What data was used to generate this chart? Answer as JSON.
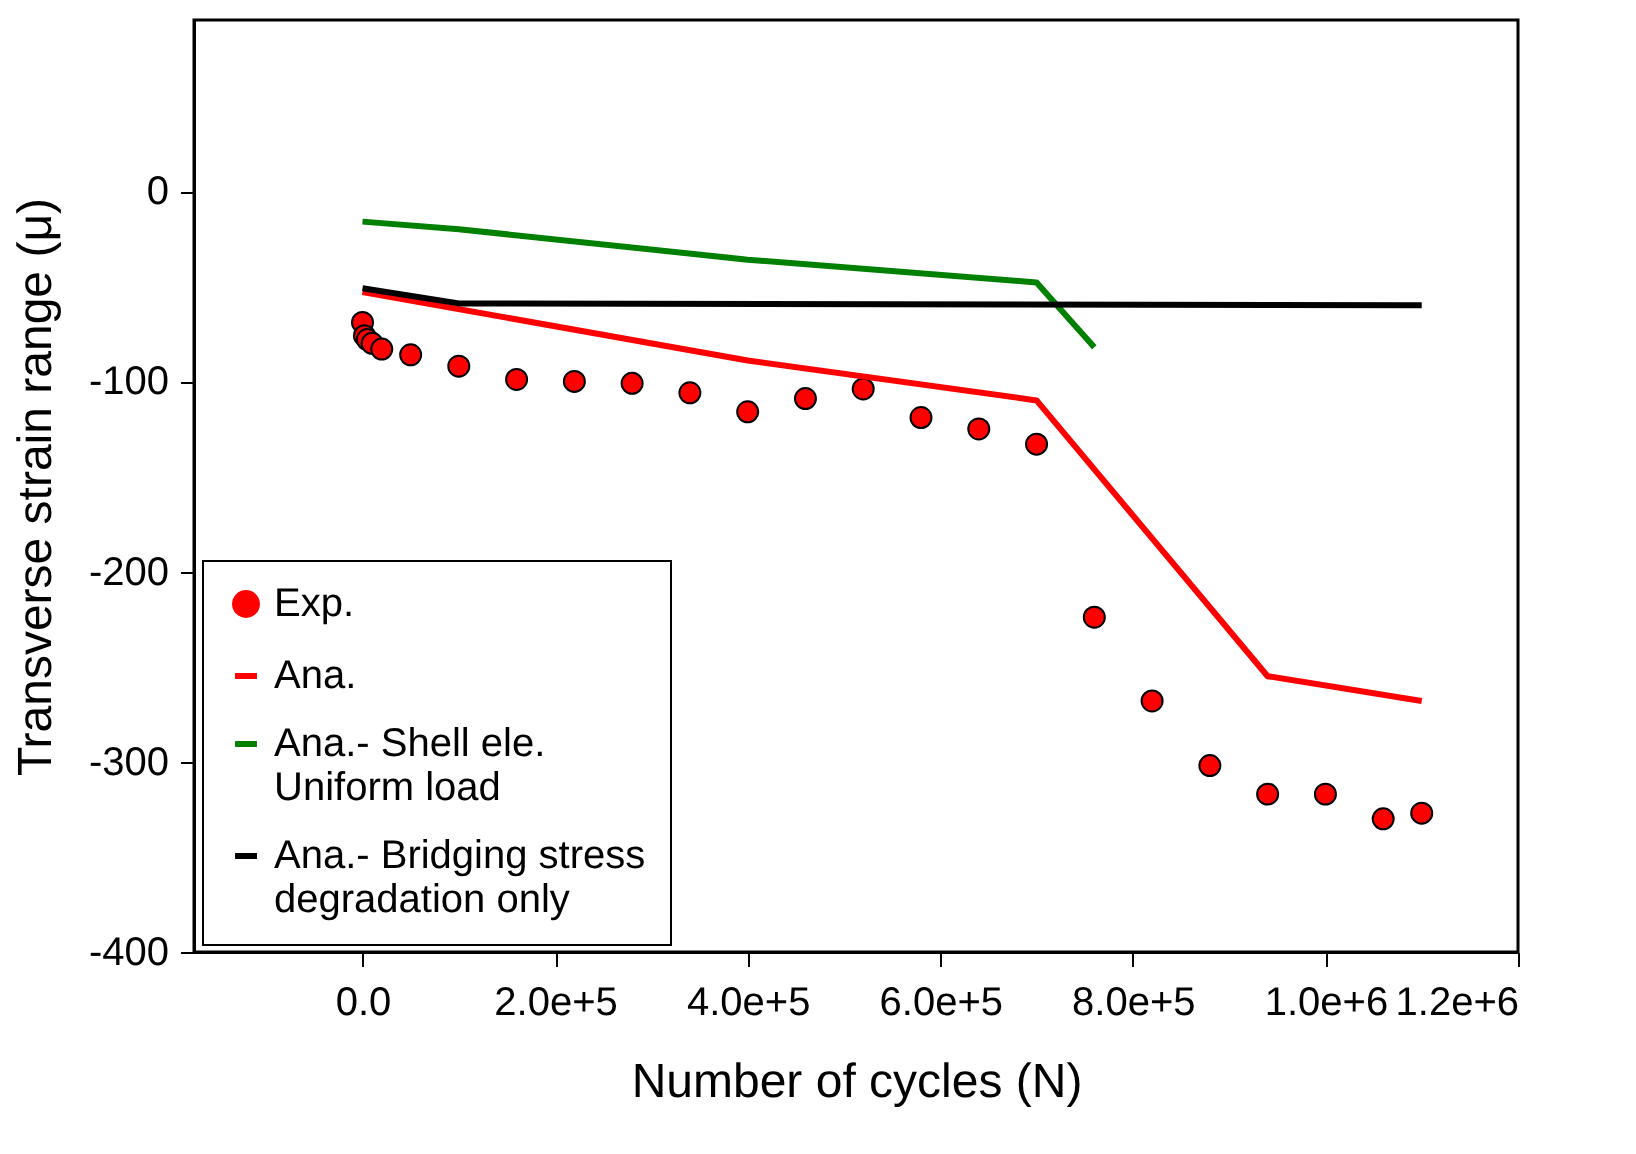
{
  "chart_data": {
    "type": "line",
    "xlabel": "Number of cycles (N)",
    "ylabel": "Transverse strain range (μ)",
    "xlim": [
      -175000,
      1200000
    ],
    "ylim": [
      -400,
      90
    ],
    "xticks": [
      {
        "value": 0,
        "label": "0.0"
      },
      {
        "value": 200000,
        "label": "2.0e+5"
      },
      {
        "value": 400000,
        "label": "4.0e+5"
      },
      {
        "value": 600000,
        "label": "6.0e+5"
      },
      {
        "value": 800000,
        "label": "8.0e+5"
      },
      {
        "value": 1000000,
        "label": "1.0e+6"
      },
      {
        "value": 1200000,
        "label": "1.2e+6"
      }
    ],
    "yticks": [
      0,
      -100,
      -200,
      -300,
      -400
    ],
    "grid": false,
    "legend": "bottom left",
    "series": [
      {
        "name": "Exp.",
        "type": "scatter",
        "marker": "circle",
        "color": "#ff0000",
        "x": [
          0,
          2000,
          5000,
          10000,
          20000,
          50000,
          100000,
          160000,
          220000,
          280000,
          340000,
          400000,
          460000,
          520000,
          580000,
          640000,
          700000,
          760000,
          820000,
          880000,
          940000,
          1000000,
          1060000,
          1100000
        ],
        "values": [
          -69,
          -76,
          -78,
          -80,
          -83,
          -86,
          -92,
          -99,
          -100,
          -101,
          -106,
          -116,
          -109,
          -104,
          -119,
          -125,
          -133,
          -224,
          -268,
          -302,
          -317,
          -317,
          -330,
          -327
        ]
      },
      {
        "name": "Ana.",
        "color": "#ff0000",
        "x": [
          0,
          400000,
          700000,
          940000,
          1100000
        ],
        "values": [
          -53,
          -89,
          -110,
          -255,
          -268
        ]
      },
      {
        "name": "Ana.- Shell ele.\nUniform load",
        "color": "#008000",
        "x": [
          0,
          100000,
          400000,
          700000,
          760000
        ],
        "values": [
          -16,
          -20,
          -36,
          -48,
          -82
        ]
      },
      {
        "name": "Ana.- Bridging stress\n degradation only",
        "color": "#000000",
        "x": [
          0,
          100000,
          1100000
        ],
        "values": [
          -51,
          -59,
          -60
        ]
      }
    ]
  }
}
